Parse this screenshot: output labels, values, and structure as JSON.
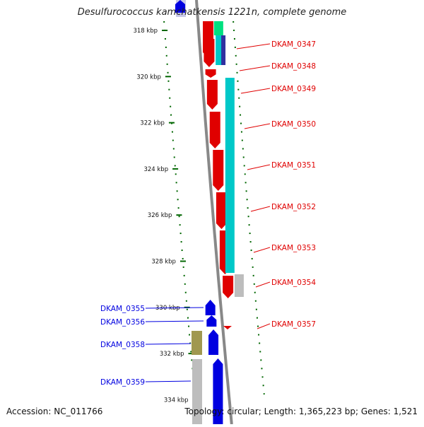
{
  "title": "Desulfurococcus kamchatkensis 1221n, complete genome",
  "footer": {
    "accession": "Accession: NC_011766",
    "summary": "Topology: circular; Length: 1,365,223 bp; Genes: 1,521"
  },
  "ruler": {
    "ticks": [
      {
        "label": "318 kbp",
        "kbp": 318
      },
      {
        "label": "320 kbp",
        "kbp": 320
      },
      {
        "label": "322 kbp",
        "kbp": 322
      },
      {
        "label": "324 kbp",
        "kbp": 324
      },
      {
        "label": "326 kbp",
        "kbp": 326
      },
      {
        "label": "328 kbp",
        "kbp": 328
      },
      {
        "label": "330 kbp",
        "kbp": 330
      },
      {
        "label": "332 kbp",
        "kbp": 332
      },
      {
        "label": "334 kbp",
        "kbp": 334
      }
    ]
  },
  "colors": {
    "forward": "#e00000",
    "reverse": "#0000e0",
    "teal": "#00c8c8",
    "green": "#00e080",
    "navy": "#3030a0",
    "grey": "#bdbdbd",
    "olive": "#a09850",
    "backbone": "#888888",
    "tick": "#006600"
  },
  "genes": {
    "forward": [
      {
        "label": "DKAM_0347"
      },
      {
        "label": "DKAM_0348"
      },
      {
        "label": "DKAM_0349"
      },
      {
        "label": "DKAM_0350"
      },
      {
        "label": "DKAM_0351"
      },
      {
        "label": "DKAM_0352"
      },
      {
        "label": "DKAM_0353"
      },
      {
        "label": "DKAM_0354"
      },
      {
        "label": "DKAM_0357"
      }
    ],
    "reverse": [
      {
        "label": "DKAM_0355"
      },
      {
        "label": "DKAM_0356"
      },
      {
        "label": "DKAM_0358"
      },
      {
        "label": "DKAM_0359"
      }
    ]
  }
}
